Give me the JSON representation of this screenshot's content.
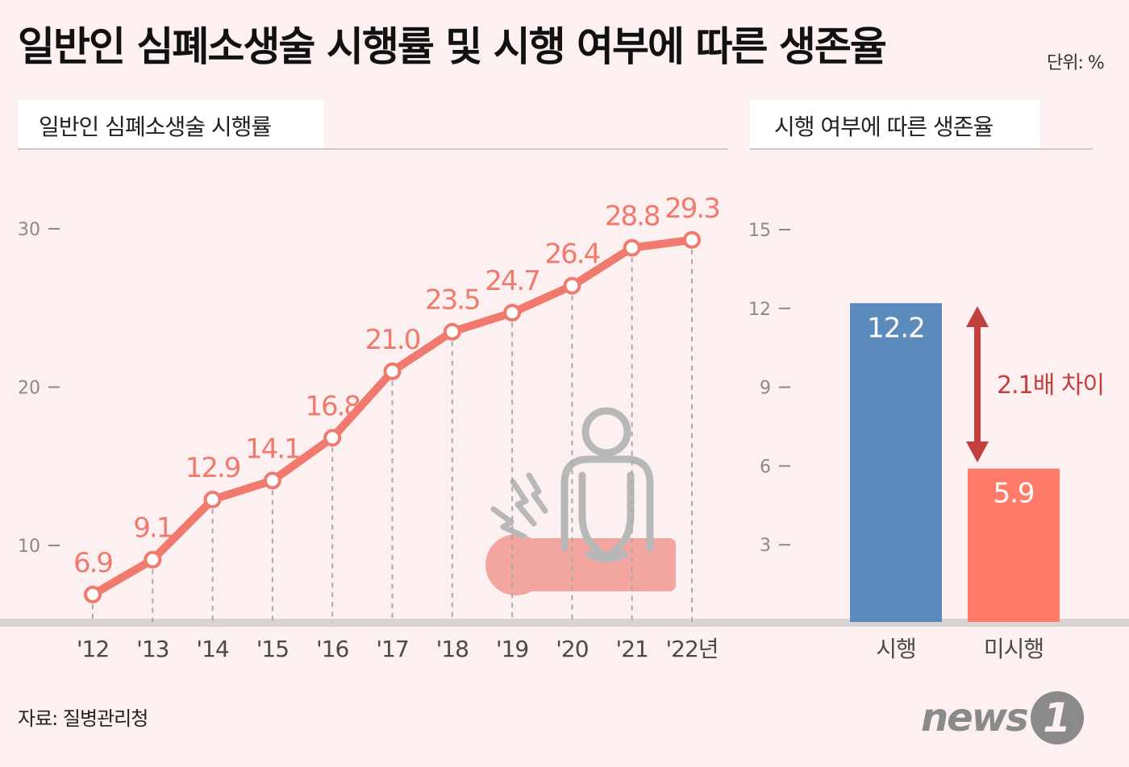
{
  "title": "일반인 심폐소생술 시행률 및 시행 여부에 따른 생존율",
  "unit": "단위: %",
  "source": "자료: 질병관리청",
  "logo": {
    "text": "news",
    "badge": "1"
  },
  "colors": {
    "line": "#f07a6e",
    "bar_performed": "#5b8bbc",
    "bar_not_performed": "#fd7b68",
    "arrow": "#c4403f",
    "icon_gray": "#b8b8b8",
    "icon_pink": "#f3a5a0"
  },
  "icons": [
    "cpr-person-icon",
    "lightning-icon"
  ],
  "left_panel": {
    "tab": "일반인 심폐소생술 시행률"
  },
  "right_panel": {
    "tab": "시행 여부에 따른 생존율",
    "annotation": "2.1배 차이"
  },
  "chart_data": [
    {
      "type": "line",
      "title": "일반인 심폐소생술 시행률",
      "categories": [
        "'12",
        "'13",
        "'14",
        "'15",
        "'16",
        "'17",
        "'18",
        "'19",
        "'20",
        "'21",
        "'22년"
      ],
      "values": [
        6.9,
        9.1,
        12.9,
        14.1,
        16.8,
        21.0,
        23.5,
        24.7,
        26.4,
        28.8,
        29.3
      ],
      "value_labels": [
        "6.9",
        "9.1",
        "12.9",
        "14.1",
        "16.8",
        "21.0",
        "23.5",
        "24.7",
        "26.4",
        "28.8",
        "29.3"
      ],
      "yticks": [
        "10",
        "20",
        "30"
      ],
      "ylim": [
        6,
        35
      ],
      "grid": false
    },
    {
      "type": "bar",
      "title": "시행 여부에 따른 생존율",
      "categories": [
        "시행",
        "미시행"
      ],
      "values": [
        12.2,
        5.9
      ],
      "value_labels": [
        "12.2",
        "5.9"
      ],
      "yticks": [
        "3",
        "6",
        "9",
        "12",
        "15"
      ],
      "ylim": [
        0,
        18
      ],
      "grid": false
    }
  ]
}
